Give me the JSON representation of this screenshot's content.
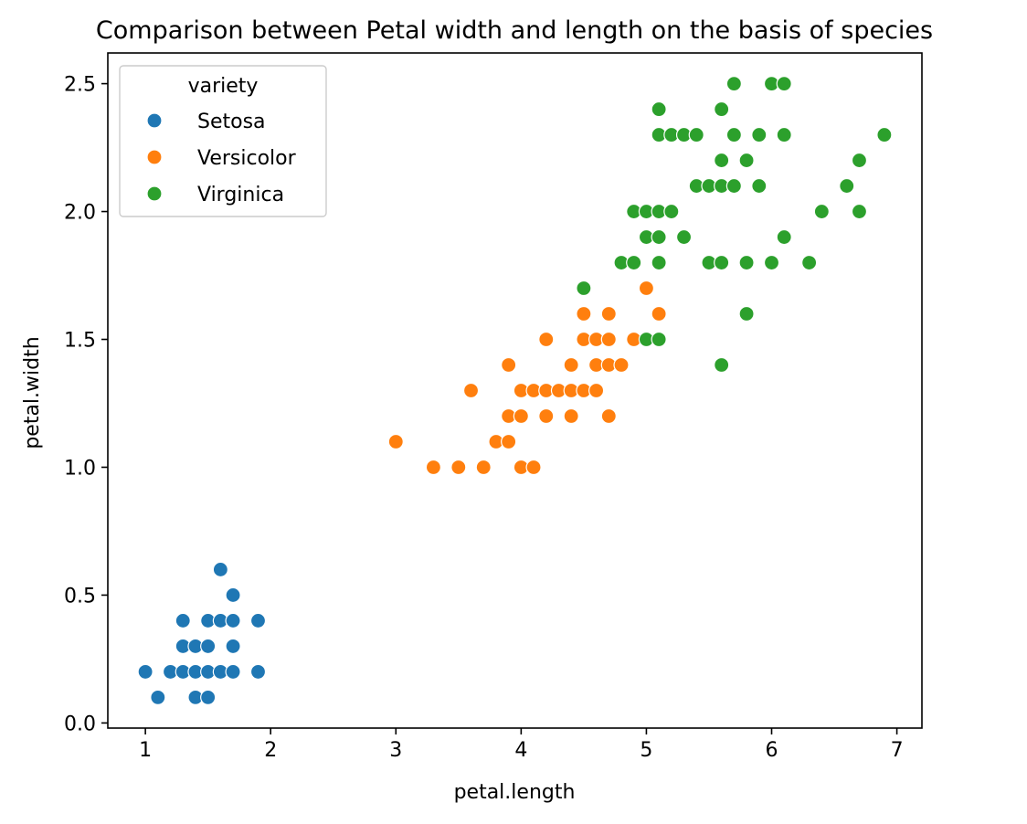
{
  "chart_data": {
    "type": "scatter",
    "title": "Comparison between Petal width and length on the basis of species",
    "xlabel": "petal.length",
    "ylabel": "petal.width",
    "xlim": [
      0.7,
      7.2
    ],
    "ylim": [
      -0.02,
      2.62
    ],
    "xticks": [
      1,
      2,
      3,
      4,
      5,
      6,
      7
    ],
    "xtick_labels": [
      "1",
      "2",
      "3",
      "4",
      "5",
      "6",
      "7"
    ],
    "yticks": [
      0.0,
      0.5,
      1.0,
      1.5,
      2.0,
      2.5
    ],
    "ytick_labels": [
      "0.0",
      "0.5",
      "1.0",
      "1.5",
      "2.0",
      "2.5"
    ],
    "grid": false,
    "legend": {
      "title": "variety",
      "position": "top-left"
    },
    "series": [
      {
        "name": "Setosa",
        "color": "#1f77b4",
        "points": [
          [
            1.0,
            0.2
          ],
          [
            1.1,
            0.1
          ],
          [
            1.2,
            0.2
          ],
          [
            1.3,
            0.2
          ],
          [
            1.3,
            0.3
          ],
          [
            1.3,
            0.4
          ],
          [
            1.4,
            0.1
          ],
          [
            1.4,
            0.2
          ],
          [
            1.4,
            0.3
          ],
          [
            1.5,
            0.1
          ],
          [
            1.5,
            0.2
          ],
          [
            1.5,
            0.3
          ],
          [
            1.5,
            0.4
          ],
          [
            1.6,
            0.2
          ],
          [
            1.6,
            0.4
          ],
          [
            1.6,
            0.6
          ],
          [
            1.7,
            0.2
          ],
          [
            1.7,
            0.3
          ],
          [
            1.7,
            0.4
          ],
          [
            1.7,
            0.5
          ],
          [
            1.9,
            0.2
          ],
          [
            1.9,
            0.4
          ]
        ]
      },
      {
        "name": "Versicolor",
        "color": "#ff7f0e",
        "points": [
          [
            3.0,
            1.1
          ],
          [
            3.3,
            1.0
          ],
          [
            3.5,
            1.0
          ],
          [
            3.6,
            1.3
          ],
          [
            3.7,
            1.0
          ],
          [
            3.8,
            1.1
          ],
          [
            3.9,
            1.1
          ],
          [
            3.9,
            1.2
          ],
          [
            3.9,
            1.4
          ],
          [
            4.0,
            1.0
          ],
          [
            4.0,
            1.2
          ],
          [
            4.0,
            1.3
          ],
          [
            4.1,
            1.0
          ],
          [
            4.1,
            1.3
          ],
          [
            4.2,
            1.2
          ],
          [
            4.2,
            1.3
          ],
          [
            4.2,
            1.5
          ],
          [
            4.3,
            1.3
          ],
          [
            4.4,
            1.2
          ],
          [
            4.4,
            1.3
          ],
          [
            4.4,
            1.4
          ],
          [
            4.5,
            1.3
          ],
          [
            4.5,
            1.5
          ],
          [
            4.5,
            1.6
          ],
          [
            4.6,
            1.3
          ],
          [
            4.6,
            1.4
          ],
          [
            4.6,
            1.5
          ],
          [
            4.7,
            1.2
          ],
          [
            4.7,
            1.4
          ],
          [
            4.7,
            1.5
          ],
          [
            4.7,
            1.6
          ],
          [
            4.8,
            1.4
          ],
          [
            4.9,
            1.5
          ],
          [
            5.0,
            1.7
          ],
          [
            5.1,
            1.6
          ]
        ]
      },
      {
        "name": "Virginica",
        "color": "#2ca02c",
        "points": [
          [
            4.5,
            1.7
          ],
          [
            4.8,
            1.8
          ],
          [
            4.9,
            1.8
          ],
          [
            4.9,
            2.0
          ],
          [
            5.0,
            1.5
          ],
          [
            5.0,
            1.9
          ],
          [
            5.0,
            2.0
          ],
          [
            5.1,
            1.5
          ],
          [
            5.1,
            1.8
          ],
          [
            5.1,
            1.9
          ],
          [
            5.1,
            2.0
          ],
          [
            5.1,
            2.3
          ],
          [
            5.1,
            2.4
          ],
          [
            5.2,
            2.0
          ],
          [
            5.2,
            2.3
          ],
          [
            5.3,
            1.9
          ],
          [
            5.3,
            2.3
          ],
          [
            5.4,
            2.1
          ],
          [
            5.4,
            2.3
          ],
          [
            5.5,
            1.8
          ],
          [
            5.5,
            2.1
          ],
          [
            5.6,
            1.4
          ],
          [
            5.6,
            1.8
          ],
          [
            5.6,
            2.1
          ],
          [
            5.6,
            2.2
          ],
          [
            5.6,
            2.4
          ],
          [
            5.7,
            2.1
          ],
          [
            5.7,
            2.3
          ],
          [
            5.7,
            2.5
          ],
          [
            5.8,
            1.6
          ],
          [
            5.8,
            1.8
          ],
          [
            5.8,
            2.2
          ],
          [
            5.9,
            2.1
          ],
          [
            5.9,
            2.3
          ],
          [
            6.0,
            1.8
          ],
          [
            6.0,
            2.5
          ],
          [
            6.1,
            1.9
          ],
          [
            6.1,
            2.3
          ],
          [
            6.1,
            2.5
          ],
          [
            6.3,
            1.8
          ],
          [
            6.4,
            2.0
          ],
          [
            6.6,
            2.1
          ],
          [
            6.7,
            2.0
          ],
          [
            6.7,
            2.2
          ],
          [
            6.9,
            2.3
          ]
        ]
      }
    ]
  }
}
